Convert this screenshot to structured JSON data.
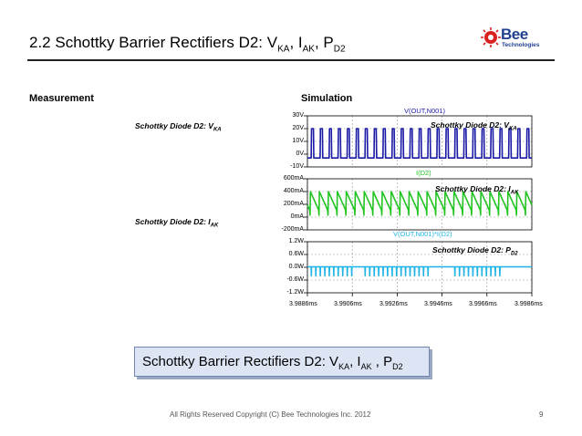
{
  "slide": {
    "title": {
      "main": "2.2 Schottky Barrier Rectifiers D2: V",
      "s1": "KA",
      "m2": ", I",
      "s2": "AK",
      "m3": ", P",
      "s3": "D2"
    },
    "logo": {
      "main": "Bee",
      "sub": "Technologies"
    },
    "measurement_header": "Measurement",
    "simulation_header": "Simulation",
    "side_labels": [
      {
        "main": "Schottky Diode D2: V",
        "sub": "KA"
      },
      {
        "main": "Schottky Diode D2: I",
        "sub": "AK"
      }
    ],
    "banner": {
      "main": "Schottky Barrier Rectifiers D2: V",
      "s1": "KA",
      "m2": ", I",
      "s2": "AK",
      "m3": " , P",
      "s3": "D2"
    },
    "footer": "All Rights Reserved Copyright (C) Bee Technologies Inc. 2012",
    "page_number": "9"
  },
  "colors": {
    "vka": "#1a1aa6",
    "iak": "#22c422",
    "pd2": "#1fb5e6",
    "grid": "#9a9a9a",
    "accent": "#1f3f8f"
  },
  "chart_data": [
    {
      "type": "line",
      "series": [
        {
          "name": "V(OUT,N001)"
        }
      ],
      "annotation": {
        "main": "Schottky Diode D2: V",
        "sub": "KA"
      },
      "y_ticks": [
        "30V",
        "20V",
        "10V",
        "0V",
        "-10V"
      ],
      "ylim": [
        -10,
        30
      ],
      "wave": {
        "high": 20,
        "low": -3,
        "period_ms": 0.0004,
        "start_ms": 3.9886,
        "pulse_ms": 0.000103,
        "first_high_ms": 3.98877
      }
    },
    {
      "type": "line",
      "series": [
        {
          "name": "I(D2)"
        }
      ],
      "annotation": {
        "main": "Schottky Diode D2: I",
        "sub": "AK"
      },
      "y_ticks": [
        "600mA",
        "400mA",
        "200mA",
        "0mA",
        "-200mA"
      ],
      "ylim": [
        -200,
        600
      ],
      "wave": {
        "peak": 400,
        "valley": 10,
        "period_ms": 0.0004
      }
    },
    {
      "type": "line",
      "series": [
        {
          "name": "V(OUT,N001)*I(D2)"
        }
      ],
      "annotation": {
        "main": "Schottky Diode D2: P",
        "sub": "D2"
      },
      "y_ticks": [
        "1.2W",
        "0.6W",
        "0.0W",
        "-0.6W",
        "-1.2W"
      ],
      "ylim": [
        -1.2,
        1.2
      ],
      "wave": {
        "baseline": 0.02,
        "spike_up": 0.9,
        "spike_down": -0.4,
        "period_ms": 0.0002
      }
    }
  ],
  "x_ticks": [
    "3.9886ms",
    "3.9906ms",
    "3.9926ms",
    "3.9946ms",
    "3.9966ms",
    "3.9986ms"
  ],
  "xlim": [
    3.9886,
    3.9986
  ]
}
